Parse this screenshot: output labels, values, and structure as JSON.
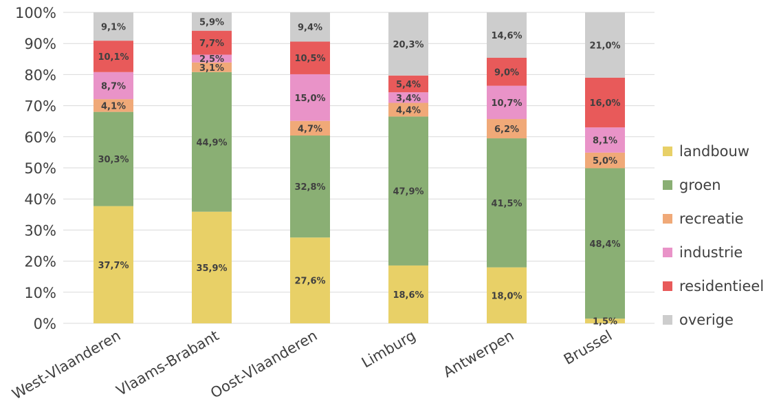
{
  "chart_data": {
    "type": "bar",
    "stacked": true,
    "percent": true,
    "categories": [
      "West-Vlaanderen",
      "Vlaams-Brabant",
      "Oost-Vlaanderen",
      "Limburg",
      "Antwerpen",
      "Brussel"
    ],
    "y_ticks": [
      "0%",
      "10%",
      "20%",
      "30%",
      "40%",
      "50%",
      "60%",
      "70%",
      "80%",
      "90%",
      "100%"
    ],
    "ylim": [
      0,
      100
    ],
    "grid": true,
    "legend_position": "right",
    "series": [
      {
        "name": "landbouw",
        "color": "#e8d067",
        "values": [
          37.7,
          35.9,
          27.6,
          18.6,
          18.0,
          1.5
        ],
        "labels": [
          "37,7%",
          "35,9%",
          "27,6%",
          "18,6%",
          "18,0%",
          "1,5%"
        ]
      },
      {
        "name": "groen",
        "color": "#8aaf74",
        "values": [
          30.3,
          44.9,
          32.8,
          47.9,
          41.5,
          48.4
        ],
        "labels": [
          "30,3%",
          "44,9%",
          "32,8%",
          "47,9%",
          "41,5%",
          "48,4%"
        ]
      },
      {
        "name": "recreatie",
        "color": "#f0a978",
        "values": [
          4.1,
          3.1,
          4.7,
          4.4,
          6.2,
          5.0
        ],
        "labels": [
          "4,1%",
          "3,1%",
          "4,7%",
          "4,4%",
          "6,2%",
          "5,0%"
        ]
      },
      {
        "name": "industrie",
        "color": "#e993c8",
        "values": [
          8.7,
          2.5,
          15.0,
          3.4,
          10.7,
          8.1
        ],
        "labels": [
          "8,7%",
          "2,5%",
          "15,0%",
          "3,4%",
          "10,7%",
          "8,1%"
        ]
      },
      {
        "name": "residentieel",
        "color": "#e85a5a",
        "values": [
          10.1,
          7.7,
          10.5,
          5.4,
          9.0,
          16.0
        ],
        "labels": [
          "10,1%",
          "7,7%",
          "10,5%",
          "5,4%",
          "9,0%",
          "16,0%"
        ]
      },
      {
        "name": "overige",
        "color": "#cdcdcd",
        "values": [
          9.1,
          5.9,
          9.4,
          20.3,
          14.6,
          21.0
        ],
        "labels": [
          "9,1%",
          "5,9%",
          "9,4%",
          "20,3%",
          "14,6%",
          "21,0%"
        ]
      }
    ]
  }
}
